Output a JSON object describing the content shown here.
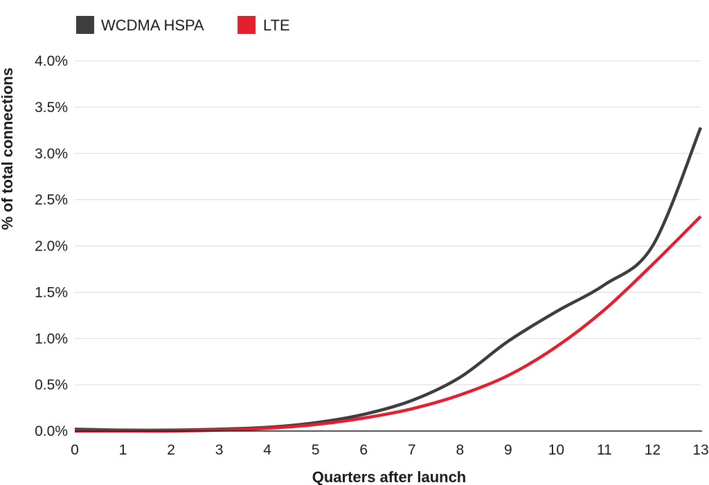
{
  "chart_data": {
    "type": "line",
    "title": "",
    "xlabel": "Quarters after launch",
    "ylabel": "% of total connections",
    "x": [
      0,
      1,
      2,
      3,
      4,
      5,
      6,
      7,
      8,
      9,
      10,
      11,
      12,
      13
    ],
    "xlim": [
      0,
      13
    ],
    "ylim": [
      0,
      4.0
    ],
    "y_ticks": [
      "0.0%",
      "0.5%",
      "1.0%",
      "1.5%",
      "2.0%",
      "2.5%",
      "3.0%",
      "3.5%",
      "4.0%"
    ],
    "x_ticks": [
      "0",
      "1",
      "2",
      "3",
      "4",
      "5",
      "6",
      "7",
      "8",
      "9",
      "10",
      "11",
      "12",
      "13"
    ],
    "grid": true,
    "legend_position": "top-left",
    "series": [
      {
        "name": "WCDMA HSPA",
        "color": "#3d3d3d",
        "values": [
          0.02,
          0.01,
          0.01,
          0.02,
          0.04,
          0.09,
          0.18,
          0.33,
          0.58,
          0.97,
          1.29,
          1.58,
          2.0,
          3.28
        ]
      },
      {
        "name": "LTE",
        "color": "#e2202f",
        "values": [
          0.0,
          0.0,
          0.0,
          0.01,
          0.03,
          0.07,
          0.14,
          0.24,
          0.39,
          0.6,
          0.91,
          1.31,
          1.8,
          2.32
        ]
      }
    ]
  }
}
